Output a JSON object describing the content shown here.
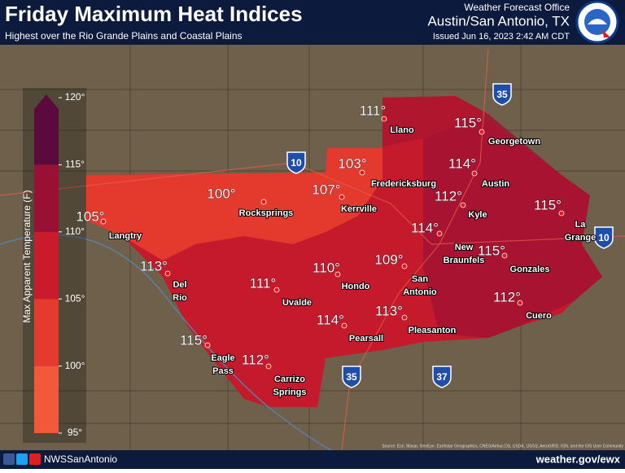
{
  "header": {
    "title": "Friday Maximum Heat Indices",
    "subtitle": "Highest over the Rio Grande Plains and Coastal Plains",
    "office_label": "Weather Forecast Office",
    "office": "Austin/San Antonio, TX",
    "issued": "Issued Jun 16, 2023 2:42 AM CDT"
  },
  "legend": {
    "label": "Max Apparent Temperature (F)",
    "ticks": [
      {
        "value": 120,
        "label": "120°"
      },
      {
        "value": 115,
        "label": "115°"
      },
      {
        "value": 110,
        "label": "110°"
      },
      {
        "value": 105,
        "label": "105°"
      },
      {
        "value": 100,
        "label": "100°"
      },
      {
        "value": 95,
        "label": "95°"
      }
    ],
    "colors": [
      "#f2583a",
      "#e53a2e",
      "#c81c2c",
      "#9a1034",
      "#5a0a3c"
    ]
  },
  "highways": [
    "35",
    "10",
    "10",
    "35",
    "37"
  ],
  "readings": [
    {
      "value": "111°",
      "city": [
        "Llano"
      ]
    },
    {
      "value": "115°",
      "city": [
        "Georgetown"
      ]
    },
    {
      "value": "103°",
      "city": [
        "Fredericksburg"
      ]
    },
    {
      "value": "114°",
      "city": [
        "Austin"
      ]
    },
    {
      "value": "100°",
      "city": [
        "Rocksprings"
      ]
    },
    {
      "value": "107°",
      "city": [
        "Kerrville"
      ]
    },
    {
      "value": "112°",
      "city": [
        "Kyle"
      ]
    },
    {
      "value": "115°",
      "city": [
        "La",
        "Grange"
      ]
    },
    {
      "value": "105°",
      "city": [
        "Langtry"
      ]
    },
    {
      "value": "114°",
      "city": [
        "New",
        "Braunfels"
      ]
    },
    {
      "value": "115°",
      "city": [
        "Gonzales"
      ]
    },
    {
      "value": "109°",
      "city": [
        "San",
        "Antonio"
      ]
    },
    {
      "value": "113°",
      "city": [
        "Del",
        "Rio"
      ]
    },
    {
      "value": "110°",
      "city": [
        "Hondo"
      ]
    },
    {
      "value": "111°",
      "city": [
        "Uvalde"
      ]
    },
    {
      "value": "112°",
      "city": [
        "Cuero"
      ]
    },
    {
      "value": "113°",
      "city": [
        "Pleasanton"
      ]
    },
    {
      "value": "114°",
      "city": [
        "Pearsall"
      ]
    },
    {
      "value": "115°",
      "city": [
        "Eagle",
        "Pass"
      ]
    },
    {
      "value": "112°",
      "city": [
        "Carrizo",
        "Springs"
      ]
    }
  ],
  "footer": {
    "handle": "NWSSanAntonio",
    "url": "weather.gov/ewx",
    "credits": "Source: Esri, Maxar, GeoEye, Earthstar Geographics, CNES/Airbus DS, USDA, USGS, AeroGRID, IGN, and the GIS User Community"
  }
}
